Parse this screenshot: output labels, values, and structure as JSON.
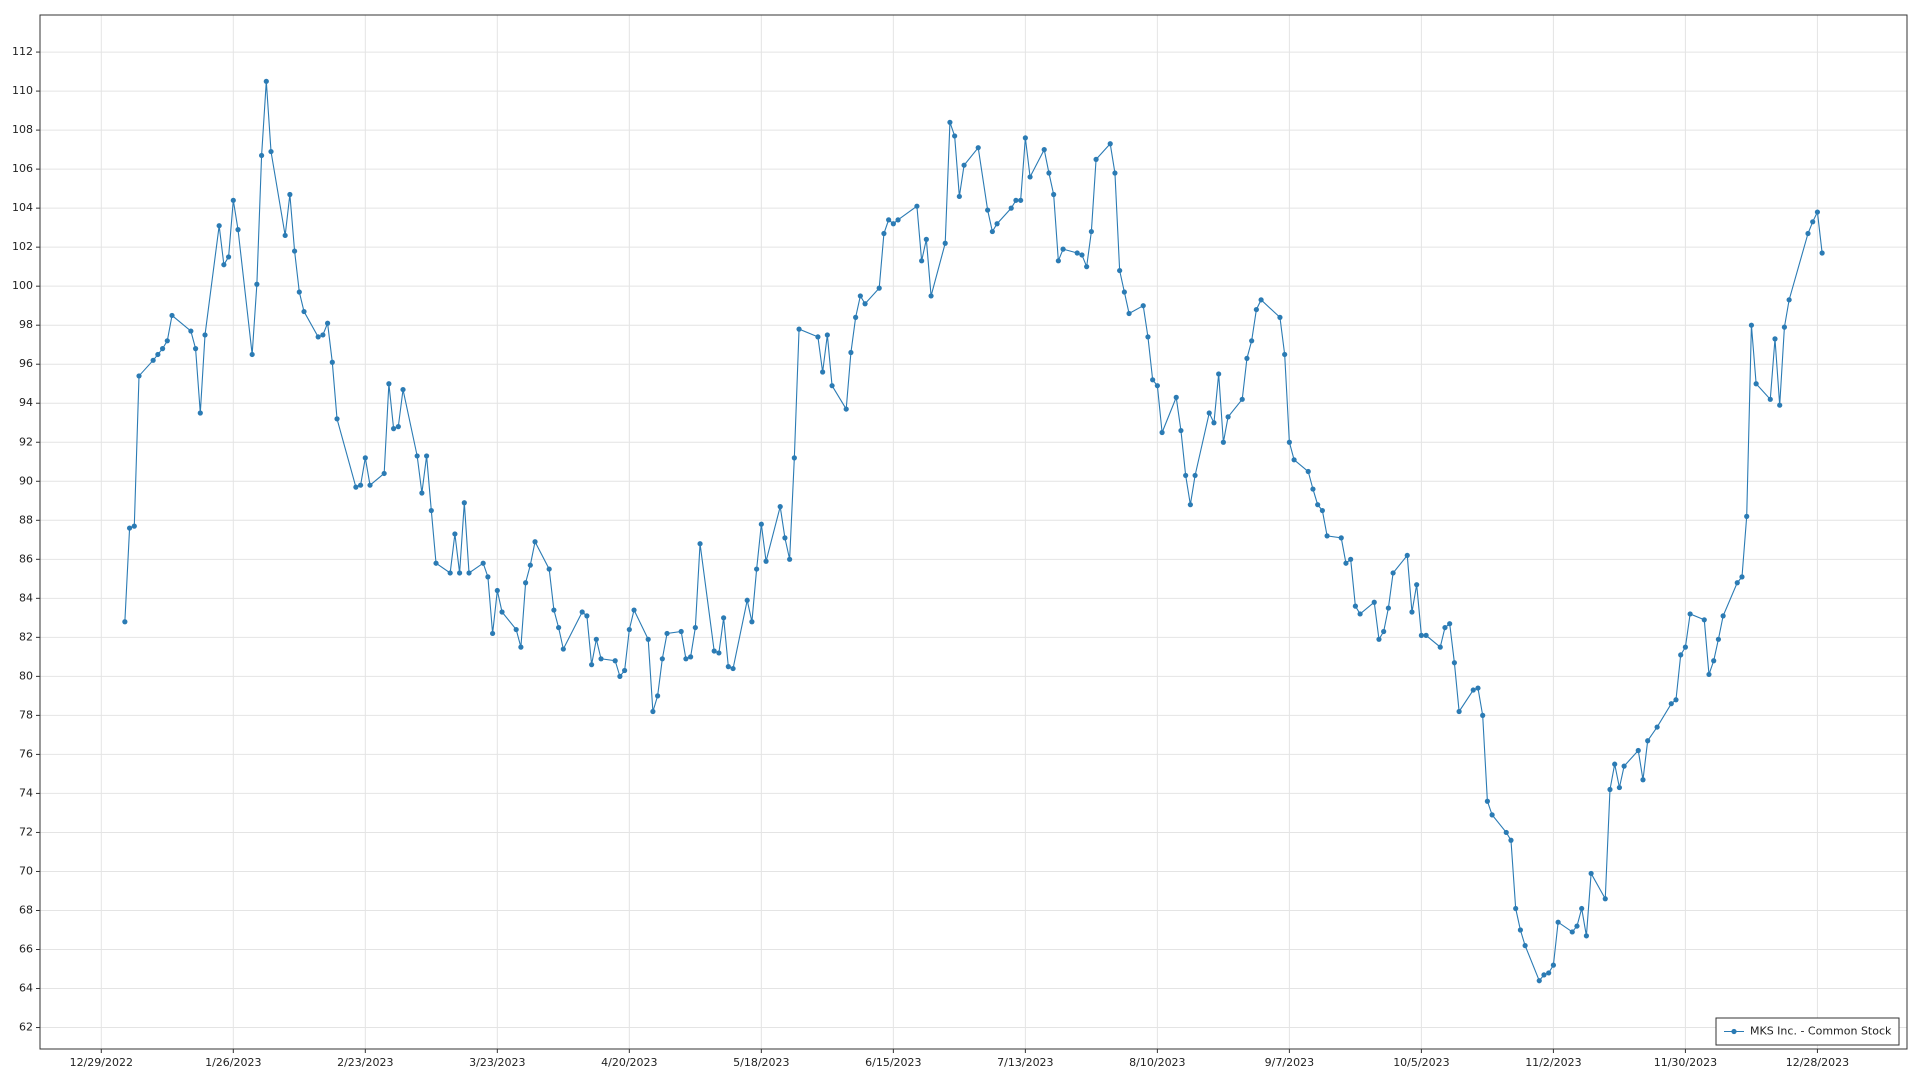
{
  "chart_data": {
    "type": "line",
    "x": [
      "1/3/2023",
      "1/4/2023",
      "1/5/2023",
      "1/6/2023",
      "1/9/2023",
      "1/10/2023",
      "1/11/2023",
      "1/12/2023",
      "1/13/2023",
      "1/17/2023",
      "1/18/2023",
      "1/19/2023",
      "1/20/2023",
      "1/23/2023",
      "1/24/2023",
      "1/25/2023",
      "1/26/2023",
      "1/27/2023",
      "1/30/2023",
      "1/31/2023",
      "2/1/2023",
      "2/2/2023",
      "2/3/2023",
      "2/6/2023",
      "2/7/2023",
      "2/8/2023",
      "2/9/2023",
      "2/10/2023",
      "2/13/2023",
      "2/14/2023",
      "2/15/2023",
      "2/16/2023",
      "2/17/2023",
      "2/21/2023",
      "2/22/2023",
      "2/23/2023",
      "2/24/2023",
      "2/27/2023",
      "2/28/2023",
      "3/1/2023",
      "3/2/2023",
      "3/3/2023",
      "3/6/2023",
      "3/7/2023",
      "3/8/2023",
      "3/9/2023",
      "3/10/2023",
      "3/13/2023",
      "3/14/2023",
      "3/15/2023",
      "3/16/2023",
      "3/17/2023",
      "3/20/2023",
      "3/21/2023",
      "3/22/2023",
      "3/23/2023",
      "3/24/2023",
      "3/27/2023",
      "3/28/2023",
      "3/29/2023",
      "3/30/2023",
      "3/31/2023",
      "4/3/2023",
      "4/4/2023",
      "4/5/2023",
      "4/6/2023",
      "4/10/2023",
      "4/11/2023",
      "4/12/2023",
      "4/13/2023",
      "4/14/2023",
      "4/17/2023",
      "4/18/2023",
      "4/19/2023",
      "4/20/2023",
      "4/21/2023",
      "4/24/2023",
      "4/25/2023",
      "4/26/2023",
      "4/27/2023",
      "4/28/2023",
      "5/1/2023",
      "5/2/2023",
      "5/3/2023",
      "5/4/2023",
      "5/5/2023",
      "5/8/2023",
      "5/9/2023",
      "5/10/2023",
      "5/11/2023",
      "5/12/2023",
      "5/15/2023",
      "5/16/2023",
      "5/17/2023",
      "5/18/2023",
      "5/19/2023",
      "5/22/2023",
      "5/23/2023",
      "5/24/2023",
      "5/25/2023",
      "5/26/2023",
      "5/30/2023",
      "5/31/2023",
      "6/1/2023",
      "6/2/2023",
      "6/5/2023",
      "6/6/2023",
      "6/7/2023",
      "6/8/2023",
      "6/9/2023",
      "6/12/2023",
      "6/13/2023",
      "6/14/2023",
      "6/15/2023",
      "6/16/2023",
      "6/20/2023",
      "6/21/2023",
      "6/22/2023",
      "6/23/2023",
      "6/26/2023",
      "6/27/2023",
      "6/28/2023",
      "6/29/2023",
      "6/30/2023",
      "7/3/2023",
      "7/5/2023",
      "7/6/2023",
      "7/7/2023",
      "7/10/2023",
      "7/11/2023",
      "7/12/2023",
      "7/13/2023",
      "7/14/2023",
      "7/17/2023",
      "7/18/2023",
      "7/19/2023",
      "7/20/2023",
      "7/21/2023",
      "7/24/2023",
      "7/25/2023",
      "7/26/2023",
      "7/27/2023",
      "7/28/2023",
      "7/31/2023",
      "8/1/2023",
      "8/2/2023",
      "8/3/2023",
      "8/4/2023",
      "8/7/2023",
      "8/8/2023",
      "8/9/2023",
      "8/10/2023",
      "8/11/2023",
      "8/14/2023",
      "8/15/2023",
      "8/16/2023",
      "8/17/2023",
      "8/18/2023",
      "8/21/2023",
      "8/22/2023",
      "8/23/2023",
      "8/24/2023",
      "8/25/2023",
      "8/28/2023",
      "8/29/2023",
      "8/30/2023",
      "8/31/2023",
      "9/1/2023",
      "9/5/2023",
      "9/6/2023",
      "9/7/2023",
      "9/8/2023",
      "9/11/2023",
      "9/12/2023",
      "9/13/2023",
      "9/14/2023",
      "9/15/2023",
      "9/18/2023",
      "9/19/2023",
      "9/20/2023",
      "9/21/2023",
      "9/22/2023",
      "9/25/2023",
      "9/26/2023",
      "9/27/2023",
      "9/28/2023",
      "9/29/2023",
      "10/2/2023",
      "10/3/2023",
      "10/4/2023",
      "10/5/2023",
      "10/6/2023",
      "10/9/2023",
      "10/10/2023",
      "10/11/2023",
      "10/12/2023",
      "10/13/2023",
      "10/16/2023",
      "10/17/2023",
      "10/18/2023",
      "10/19/2023",
      "10/20/2023",
      "10/23/2023",
      "10/24/2023",
      "10/25/2023",
      "10/26/2023",
      "10/27/2023",
      "10/30/2023",
      "10/31/2023",
      "11/1/2023",
      "11/2/2023",
      "11/3/2023",
      "11/6/2023",
      "11/7/2023",
      "11/8/2023",
      "11/9/2023",
      "11/10/2023",
      "11/13/2023",
      "11/14/2023",
      "11/15/2023",
      "11/16/2023",
      "11/17/2023",
      "11/20/2023",
      "11/21/2023",
      "11/22/2023",
      "11/24/2023",
      "11/27/2023",
      "11/28/2023",
      "11/29/2023",
      "11/30/2023",
      "12/1/2023",
      "12/4/2023",
      "12/5/2023",
      "12/6/2023",
      "12/7/2023",
      "12/8/2023",
      "12/11/2023",
      "12/12/2023",
      "12/13/2023",
      "12/14/2023",
      "12/15/2023",
      "12/18/2023",
      "12/19/2023",
      "12/20/2023",
      "12/21/2023",
      "12/22/2023",
      "12/26/2023",
      "12/27/2023",
      "12/28/2023",
      "12/29/2023"
    ],
    "series": [
      {
        "name": "MKS Inc. - Common Stock",
        "color": "#2b7bb4",
        "values": [
          82.8,
          87.6,
          87.7,
          95.4,
          96.2,
          96.5,
          96.8,
          97.2,
          98.5,
          97.7,
          96.8,
          93.5,
          97.5,
          103.1,
          101.1,
          101.5,
          104.4,
          102.9,
          96.5,
          100.1,
          106.7,
          110.5,
          106.9,
          102.6,
          104.7,
          101.8,
          99.7,
          98.7,
          97.4,
          97.5,
          98.1,
          96.1,
          93.2,
          89.7,
          89.8,
          91.2,
          89.8,
          90.4,
          95.0,
          92.7,
          92.8,
          94.7,
          91.3,
          89.4,
          91.3,
          88.5,
          85.8,
          85.3,
          87.3,
          85.3,
          88.9,
          85.3,
          85.8,
          85.1,
          82.2,
          84.4,
          83.3,
          82.4,
          81.5,
          84.8,
          85.7,
          86.9,
          85.5,
          83.4,
          82.5,
          81.4,
          83.3,
          83.1,
          80.6,
          81.9,
          80.9,
          80.8,
          80.0,
          80.3,
          82.4,
          83.4,
          81.9,
          78.2,
          79.0,
          80.9,
          82.2,
          82.3,
          80.9,
          81.0,
          82.5,
          86.8,
          81.3,
          81.2,
          83.0,
          80.5,
          80.4,
          83.9,
          82.8,
          85.5,
          87.8,
          85.9,
          88.7,
          87.1,
          86.0,
          91.2,
          97.8,
          97.4,
          95.6,
          97.5,
          94.9,
          93.7,
          96.6,
          98.4,
          99.5,
          99.1,
          99.9,
          102.7,
          103.4,
          103.2,
          103.4,
          104.1,
          101.3,
          102.4,
          99.5,
          102.2,
          108.4,
          107.7,
          104.6,
          106.2,
          107.1,
          103.9,
          102.8,
          103.2,
          104.0,
          104.4,
          104.4,
          107.6,
          105.6,
          107.0,
          105.8,
          104.7,
          101.3,
          101.9,
          101.7,
          101.6,
          101.0,
          102.8,
          106.5,
          107.3,
          105.8,
          100.8,
          99.7,
          98.6,
          99.0,
          97.4,
          95.2,
          94.9,
          92.5,
          94.3,
          92.6,
          90.3,
          88.8,
          90.3,
          93.5,
          93.0,
          95.5,
          92.0,
          93.3,
          94.2,
          96.3,
          97.2,
          98.8,
          99.3,
          98.4,
          96.5,
          92.0,
          91.1,
          90.5,
          89.6,
          88.8,
          88.5,
          87.2,
          87.1,
          85.8,
          86.0,
          83.6,
          83.2,
          83.8,
          81.9,
          82.3,
          83.5,
          85.3,
          86.2,
          83.3,
          84.7,
          82.1,
          82.1,
          81.5,
          82.5,
          82.7,
          80.7,
          78.2,
          79.3,
          79.4,
          78.0,
          73.6,
          72.9,
          72.0,
          71.6,
          68.1,
          67.0,
          66.2,
          64.4,
          64.7,
          64.8,
          65.2,
          67.4,
          66.9,
          67.2,
          68.1,
          66.7,
          69.9,
          68.6,
          74.2,
          75.5,
          74.3,
          75.4,
          76.2,
          74.7,
          76.7,
          77.4,
          78.6,
          78.8,
          81.1,
          81.5,
          83.2,
          82.9,
          80.1,
          80.8,
          81.9,
          83.1,
          84.8,
          85.1,
          88.2,
          98.0,
          95.0,
          94.2,
          97.3,
          93.9,
          97.9,
          99.3,
          102.7,
          103.3,
          103.8,
          101.7
        ]
      }
    ],
    "xlim": [
      "12/16/2022",
      "1/16/2024"
    ],
    "xticks": [
      "12/29/2022",
      "1/26/2023",
      "2/23/2023",
      "3/23/2023",
      "4/20/2023",
      "5/18/2023",
      "6/15/2023",
      "7/13/2023",
      "8/10/2023",
      "9/7/2023",
      "10/5/2023",
      "11/2/2023",
      "11/30/2023",
      "12/28/2023"
    ],
    "ylim": [
      60.9,
      113.9
    ],
    "yticks": [
      62,
      64,
      66,
      68,
      70,
      72,
      74,
      76,
      78,
      80,
      82,
      84,
      86,
      88,
      90,
      92,
      94,
      96,
      98,
      100,
      102,
      104,
      106,
      108,
      110,
      112
    ],
    "grid": true,
    "legend": "lower right"
  }
}
